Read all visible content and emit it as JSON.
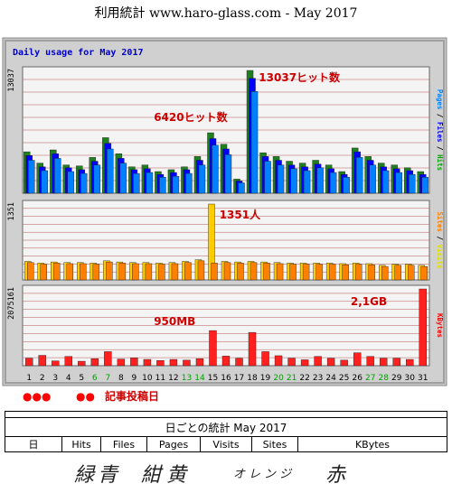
{
  "title": "利用統計 www.haro-glass.com - May 2017",
  "chart_data": {
    "type": "bar",
    "title": "Daily usage for May 2017",
    "categories": [
      "1",
      "2",
      "3",
      "4",
      "5",
      "6",
      "7",
      "8",
      "9",
      "10",
      "11",
      "12",
      "13",
      "14",
      "15",
      "16",
      "17",
      "18",
      "19",
      "20",
      "21",
      "22",
      "23",
      "24",
      "25",
      "26",
      "27",
      "28",
      "29",
      "30",
      "31"
    ],
    "day_colors": [
      "#000000",
      "#000000",
      "#000000",
      "#000000",
      "#000000",
      "#00a000",
      "#00a000",
      "#000000",
      "#000000",
      "#000000",
      "#000000",
      "#000000",
      "#00a000",
      "#00a000",
      "#000000",
      "#000000",
      "#000000",
      "#000000",
      "#000000",
      "#00a000",
      "#00a000",
      "#000000",
      "#000000",
      "#000000",
      "#000000",
      "#000000",
      "#00a000",
      "#00a000",
      "#000000",
      "#000000",
      "#000000"
    ],
    "panels": [
      {
        "name": "hits",
        "ymax_label": "13037",
        "ymax": 13037,
        "side_label": [
          "Pages",
          " / ",
          "Files",
          " / ",
          "Hits"
        ],
        "side_colors": [
          "#0080ff",
          "#000000",
          "#0000ff",
          "#000000",
          "#00a000"
        ],
        "series": [
          {
            "name": "Hits",
            "color": "#208020",
            "values": [
              4400,
              3200,
              4600,
              3000,
              2900,
              3800,
              5900,
              4200,
              2800,
              3000,
              2300,
              2500,
              2800,
              3900,
              6420,
              5200,
              1500,
              13037,
              4300,
              3900,
              3400,
              3200,
              3500,
              3000,
              2300,
              4800,
              3900,
              3200,
              3000,
              2700,
              2300
            ]
          },
          {
            "name": "Files",
            "color": "#0000ff",
            "values": [
              4000,
              2800,
              4200,
              2700,
              2500,
              3400,
              5300,
              3700,
              2500,
              2600,
              2000,
              2200,
              2500,
              3500,
              5800,
              4700,
              1300,
              12200,
              3900,
              3500,
              3000,
              2800,
              3100,
              2600,
              2000,
              4400,
              3500,
              2800,
              2600,
              2400,
              2000
            ]
          },
          {
            "name": "Pages",
            "color": "#0080ff",
            "values": [
              3500,
              2400,
              3700,
              2300,
              2100,
              3000,
              4700,
              3200,
              2100,
              2200,
              1700,
              1800,
              2100,
              3000,
              5100,
              4100,
              1100,
              10800,
              3400,
              3000,
              2600,
              2400,
              2700,
              2200,
              1700,
              3800,
              3000,
              2400,
              2200,
              2000,
              1700
            ]
          }
        ],
        "annotations": [
          {
            "text": "13037ヒット数",
            "day": 19
          },
          {
            "text": "6420ヒット数",
            "day": 11
          }
        ]
      },
      {
        "name": "visits",
        "ymax_label": "1351",
        "ymax": 1351,
        "side_label": [
          "Sites",
          " / ",
          "Visits"
        ],
        "side_colors": [
          "#ff8000",
          "#000000",
          "#e0e000"
        ],
        "series": [
          {
            "name": "Visits",
            "color": "#ffcc00",
            "values": [
              330,
              300,
              320,
              310,
              310,
              300,
              340,
              320,
              310,
              310,
              300,
              310,
              330,
              360,
              1351,
              330,
              320,
              330,
              320,
              310,
              300,
              300,
              300,
              300,
              290,
              300,
              290,
              260,
              280,
              280,
              260
            ]
          },
          {
            "name": "Sites",
            "color": "#ff8000",
            "values": [
              310,
              280,
              300,
              290,
              290,
              280,
              320,
              300,
              290,
              290,
              280,
              290,
              310,
              340,
              300,
              310,
              300,
              310,
              300,
              290,
              280,
              280,
              280,
              280,
              270,
              280,
              270,
              240,
              260,
              260,
              240
            ]
          }
        ],
        "annotations": [
          {
            "text": "1351人",
            "day": 16
          }
        ]
      },
      {
        "name": "kbytes",
        "ymax_label": "2075161",
        "ymax": 2075161,
        "side_label": [
          "KBytes"
        ],
        "side_colors": [
          "#ff0000"
        ],
        "series": [
          {
            "name": "KBytes",
            "color": "#ff2020",
            "values": [
              200000,
              280000,
              130000,
              250000,
              120000,
              190000,
              380000,
              180000,
              210000,
              170000,
              140000,
              170000,
              150000,
              190000,
              950000,
              260000,
              200000,
              900000,
              380000,
              270000,
              200000,
              160000,
              250000,
              200000,
              150000,
              350000,
              250000,
              200000,
              200000,
              170000,
              2075161
            ]
          }
        ],
        "annotations": [
          {
            "text": "950MB",
            "day": 11
          },
          {
            "text": "2,1GB",
            "day": 26
          }
        ]
      }
    ]
  },
  "marks": {
    "dots_left": "●●●",
    "dots_right": "●●",
    "label": "記事投稿日"
  },
  "table": {
    "title": "日ごとの統計 May 2017",
    "headers": [
      "日",
      "Hits",
      "Files",
      "Pages",
      "Visits",
      "Sites",
      "KBytes"
    ]
  },
  "handwriting": {
    "green": "緑",
    "blue": "青",
    "navy": "紺",
    "yellow": "黄",
    "orange": "オレンジ",
    "red": "赤"
  }
}
